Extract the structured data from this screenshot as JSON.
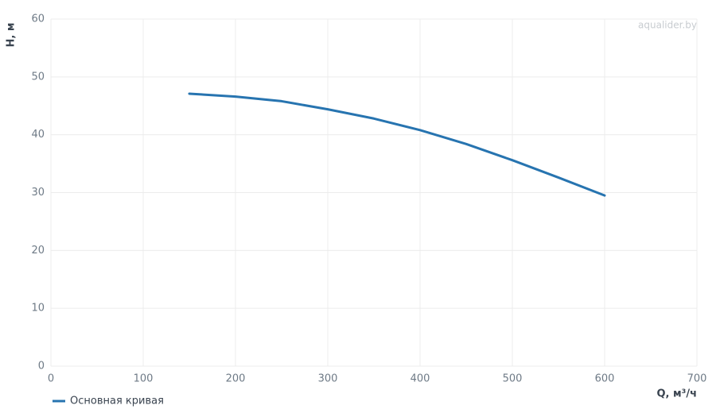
{
  "chart_data": {
    "type": "line",
    "x_label": "Q, м³/ч",
    "y_label": "H, м",
    "watermark": "aqualider.by",
    "x": [
      150,
      200,
      250,
      300,
      350,
      400,
      450,
      500,
      550,
      600
    ],
    "series": [
      {
        "name": "Основная кривая",
        "color": "#2774b0",
        "values": [
          47.1,
          46.6,
          45.8,
          44.4,
          42.8,
          40.8,
          38.4,
          35.6,
          32.6,
          29.5
        ]
      }
    ],
    "xlim": [
      0,
      700
    ],
    "xticks": [
      0,
      100,
      200,
      300,
      400,
      500,
      600,
      700
    ],
    "ylim": [
      0,
      60
    ],
    "yticks": [
      0,
      10,
      20,
      30,
      40,
      50,
      60
    ],
    "grid": true,
    "legend": "bottom-left"
  }
}
